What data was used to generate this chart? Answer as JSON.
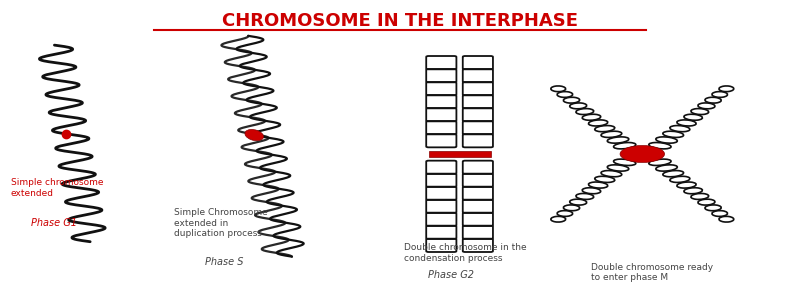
{
  "title": "CHROMOSOME IN THE INTERPHASE",
  "title_color": "#cc0000",
  "title_fontsize": 13,
  "bg_color": "#ffffff",
  "labels_g1_line1": "Simple chromosome\nextended",
  "labels_g1_line2": "Phase G1",
  "labels_s_line1": "Simple Chromosome\nextended in\nduplication process",
  "labels_s_line2": "Phase S",
  "labels_g2_line1": "Double chromosome in the\ncondensation process",
  "labels_g2_line2": "Phase G2",
  "labels_m_line1": "Double chromosome ready\nto enter phase M",
  "centromere_color": "#cc0000",
  "line_color": "#111111",
  "figsize": [
    8.0,
    3.08
  ],
  "dpi": 100
}
